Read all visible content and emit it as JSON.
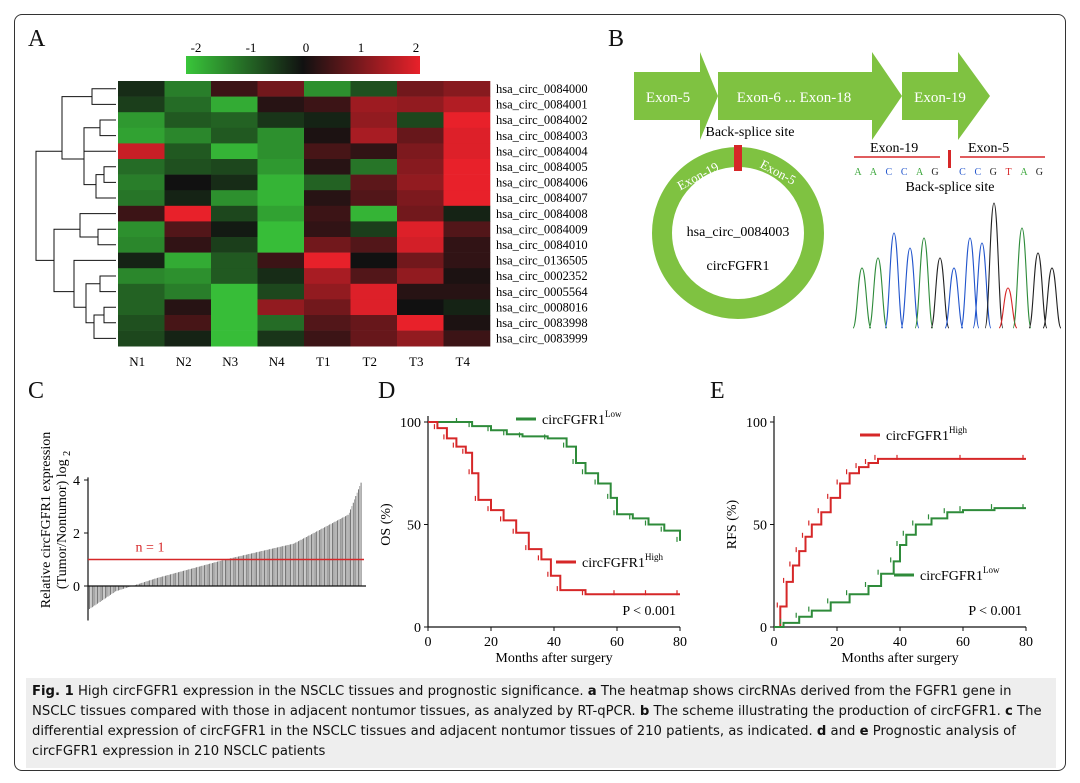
{
  "panels": {
    "a": "A",
    "b": "B",
    "c": "C",
    "d": "D",
    "e": "E"
  },
  "colors": {
    "heat_low": "#39c63a",
    "heat_mid": "#111111",
    "heat_high": "#e8212a",
    "green": "#5aa02c",
    "red": "#d62728",
    "exon_green": "#7fc241",
    "caption_bg": "#eeeeee"
  },
  "heatmap": {
    "scale_ticks": [
      "-2",
      "-1",
      "0",
      "1",
      "2"
    ],
    "columns": [
      "N1",
      "N2",
      "N3",
      "N4",
      "T1",
      "T2",
      "T3",
      "T4"
    ],
    "rows": [
      {
        "name": "hsa_circ_0084000",
        "values": [
          -0.3,
          -1.2,
          0.4,
          0.9,
          -1.4,
          -0.7,
          0.9,
          1.1
        ]
      },
      {
        "name": "hsa_circ_0084001",
        "values": [
          -0.5,
          -1.0,
          -1.7,
          0.2,
          0.4,
          1.3,
          1.2,
          1.5
        ]
      },
      {
        "name": "hsa_circ_0084002",
        "values": [
          -1.5,
          -0.8,
          -0.9,
          -0.4,
          -0.2,
          1.2,
          -0.6,
          2.0
        ]
      },
      {
        "name": "hsa_circ_0084003",
        "values": [
          -1.6,
          -1.3,
          -0.8,
          -1.4,
          0.1,
          1.4,
          0.8,
          1.9
        ]
      },
      {
        "name": "hsa_circ_0084004",
        "values": [
          1.7,
          -0.8,
          -1.8,
          -1.4,
          0.5,
          0.3,
          1.0,
          1.9
        ]
      },
      {
        "name": "hsa_circ_0084005",
        "values": [
          -1.0,
          -0.7,
          -0.6,
          -1.5,
          0.2,
          -1.1,
          1.1,
          2.0
        ]
      },
      {
        "name": "hsa_circ_0084006",
        "values": [
          -1.2,
          0.0,
          -0.3,
          -1.8,
          -0.9,
          0.7,
          1.2,
          2.0
        ]
      },
      {
        "name": "hsa_circ_0084007",
        "values": [
          -1.1,
          -0.2,
          -1.4,
          -1.8,
          0.2,
          0.6,
          1.0,
          2.0
        ]
      },
      {
        "name": "hsa_circ_0084008",
        "values": [
          0.4,
          2.0,
          -0.6,
          -1.6,
          0.4,
          -1.8,
          0.9,
          -0.2
        ]
      },
      {
        "name": "hsa_circ_0084009",
        "values": [
          -1.4,
          0.6,
          -0.1,
          -1.9,
          0.3,
          -0.5,
          1.9,
          0.6
        ]
      },
      {
        "name": "hsa_circ_0084010",
        "values": [
          -1.3,
          0.3,
          -0.5,
          -1.9,
          0.9,
          0.6,
          1.8,
          0.3
        ]
      },
      {
        "name": "hsa_circ_0136505",
        "values": [
          -0.2,
          -1.7,
          -0.8,
          0.4,
          2.0,
          0.0,
          0.9,
          0.3
        ]
      },
      {
        "name": "hsa_circ_0002352",
        "values": [
          -1.3,
          -1.4,
          -0.8,
          -0.3,
          1.4,
          0.6,
          1.2,
          0.1
        ]
      },
      {
        "name": "hsa_circ_0005564",
        "values": [
          -0.9,
          -1.2,
          -1.9,
          -0.6,
          1.2,
          1.9,
          0.2,
          0.2
        ]
      },
      {
        "name": "hsa_circ_0008016",
        "values": [
          -0.9,
          0.2,
          -1.9,
          1.2,
          0.9,
          1.9,
          0.0,
          -0.2
        ]
      },
      {
        "name": "hsa_circ_0083998",
        "values": [
          -0.7,
          0.5,
          -1.9,
          -1.0,
          0.6,
          0.8,
          2.0,
          0.1
        ]
      },
      {
        "name": "hsa_circ_0083999",
        "values": [
          -0.6,
          -0.2,
          -1.9,
          -0.4,
          0.4,
          0.8,
          1.2,
          0.4
        ]
      }
    ]
  },
  "scheme": {
    "exons": [
      "Exon-5",
      "Exon-6 ... Exon-18",
      "Exon-19"
    ],
    "back_splice_label": "Back-splice site",
    "circ_left_label": "Exon-19",
    "circ_right_label": "Exon-5",
    "circ_name": "hsa_circ_0084003",
    "circ_alias": "circFGFR1",
    "seq_left_label": "Exon-19",
    "seq_right_label": "Exon-5",
    "seq_left": "AACCAG",
    "seq_right": "CCGTAG",
    "seq_back_splice_label": "Back-splice site"
  },
  "chart_data": [
    {
      "panel": "C",
      "type": "bar",
      "ylabel_line1": "Relative circFGFR1 expression",
      "ylabel_line2": "(Tumor/Nontumor) log",
      "ylabel_sub": "2",
      "yticks": [
        "0",
        "2",
        "4"
      ],
      "ylim": [
        -1,
        4.1
      ],
      "threshold_label": "n = 1",
      "threshold": 1,
      "n": 210,
      "values_sorted": {
        "min": -0.9,
        "q10": -0.2,
        "q25": 0.3,
        "median": 1.0,
        "q75": 1.6,
        "q95": 2.7,
        "max": 3.9
      }
    },
    {
      "panel": "D",
      "type": "line",
      "xlabel": "Months after surgery",
      "ylabel": "OS (%)",
      "xticks": [
        "0",
        "20",
        "40",
        "60",
        "80"
      ],
      "yticks": [
        "0",
        "50",
        "100"
      ],
      "xlim": [
        0,
        80
      ],
      "ylim": [
        0,
        100
      ],
      "pvalue": "P < 0.001",
      "series": [
        {
          "name": "circFGFR1",
          "sup": "Low",
          "color": "#2e8b3a",
          "x": [
            0,
            10,
            14,
            20,
            25,
            30,
            38,
            44,
            47,
            50,
            54,
            58,
            60,
            65,
            70,
            75,
            80
          ],
          "y": [
            100,
            100,
            98,
            96,
            94,
            93,
            92,
            88,
            80,
            75,
            70,
            63,
            55,
            53,
            50,
            47,
            42
          ]
        },
        {
          "name": "circFGFR1",
          "sup": "High",
          "color": "#d62728",
          "x": [
            0,
            3,
            6,
            9,
            12,
            14,
            16,
            20,
            24,
            28,
            32,
            36,
            39,
            42,
            50,
            60,
            70,
            80
          ],
          "y": [
            100,
            97,
            92,
            88,
            85,
            75,
            62,
            57,
            52,
            46,
            38,
            33,
            25,
            18,
            16,
            16,
            16,
            16
          ]
        }
      ]
    },
    {
      "panel": "E",
      "type": "line",
      "xlabel": "Months after surgery",
      "ylabel": "RFS (%)",
      "xticks": [
        "0",
        "20",
        "40",
        "60",
        "80"
      ],
      "yticks": [
        "0",
        "50",
        "100"
      ],
      "xlim": [
        0,
        80
      ],
      "ylim": [
        0,
        100
      ],
      "pvalue": "P < 0.001",
      "series": [
        {
          "name": "circFGFR1",
          "sup": "High",
          "color": "#d62728",
          "x": [
            0,
            2,
            4,
            6,
            8,
            10,
            12,
            15,
            18,
            21,
            24,
            27,
            30,
            33,
            40,
            60,
            80
          ],
          "y": [
            0,
            10,
            22,
            30,
            37,
            44,
            50,
            56,
            63,
            70,
            75,
            78,
            80,
            82,
            82,
            82,
            82
          ]
        },
        {
          "name": "circFGFR1",
          "sup": "Low",
          "color": "#2e8b3a",
          "x": [
            0,
            3,
            8,
            12,
            18,
            24,
            30,
            34,
            38,
            40,
            42,
            45,
            50,
            55,
            60,
            70,
            80
          ],
          "y": [
            0,
            2,
            5,
            8,
            12,
            16,
            20,
            26,
            32,
            40,
            45,
            50,
            53,
            56,
            57,
            58,
            58
          ]
        }
      ]
    }
  ],
  "caption": {
    "fig_label": "Fig. 1",
    "title": "High circFGFR1 expression in the NSCLC tissues and prognostic significance.",
    "a_label": "a",
    "a_text": "The heatmap shows circRNAs derived from the FGFR1 gene in NSCLC tissues compared with those in adjacent nontumor tissues, as analyzed by RT-qPCR.",
    "b_label": "b",
    "b_text": "The scheme illustrating the production of circFGFR1.",
    "c_label": "c",
    "c_text": "The differential expression of circFGFR1 in the NSCLC tissues and adjacent nontumor tissues of 210 patients, as indicated.",
    "d_label": "d",
    "and_text": "and",
    "e_label": "e",
    "de_text": "Prognostic analysis of circFGFR1 expression in 210 NSCLC patients"
  }
}
